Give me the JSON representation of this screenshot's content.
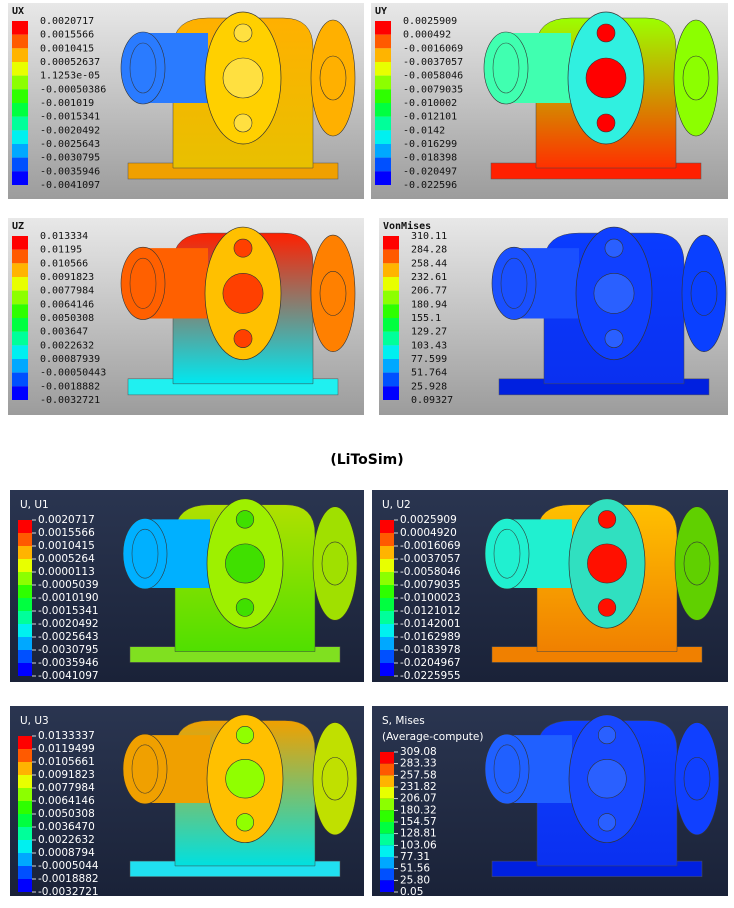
{
  "panels": [
    {
      "title": "UX",
      "labels": [
        "0.0020717",
        "0.0015566",
        "0.0010415",
        "0.00052637",
        "1.1253e-05",
        "-0.00050386",
        "-0.001019",
        "-0.0015341",
        "-0.0020492",
        "-0.0025643",
        "-0.0030795",
        "-0.0035946",
        "-0.0041097"
      ]
    },
    {
      "title": "UY",
      "labels": [
        "0.0025909",
        "0.000492",
        "-0.0016069",
        "-0.0037057",
        "-0.0058046",
        "-0.0079035",
        "-0.010002",
        "-0.012101",
        "-0.0142",
        "-0.016299",
        "-0.018398",
        "-0.020497",
        "-0.022596"
      ]
    },
    {
      "title": "UZ",
      "labels": [
        "0.013334",
        "0.01195",
        "0.010566",
        "0.0091823",
        "0.0077984",
        "0.0064146",
        "0.0050308",
        "0.003647",
        "0.0022632",
        "0.00087939",
        "-0.00050443",
        "-0.0018882",
        "-0.0032721"
      ]
    },
    {
      "title": "VonMises",
      "labels": [
        "310.11",
        "284.28",
        "258.44",
        "232.61",
        "206.77",
        "180.94",
        "155.1",
        "129.27",
        "103.43",
        "77.599",
        "51.764",
        "25.928",
        "0.09327"
      ]
    },
    {
      "title": "U, U1",
      "labels": [
        "0.0020717",
        "0.0015566",
        "0.0010415",
        "0.0005264",
        "0.0000113",
        "-0.0005039",
        "-0.0010190",
        "-0.0015341",
        "-0.0020492",
        "-0.0025643",
        "-0.0030795",
        "-0.0035946",
        "-0.0041097"
      ]
    },
    {
      "title": "U, U2",
      "labels": [
        "0.0025909",
        "0.0004920",
        "-0.0016069",
        "-0.0037057",
        "-0.0058046",
        "-0.0079035",
        "-0.0100023",
        "-0.0121012",
        "-0.0142001",
        "-0.0162989",
        "-0.0183978",
        "-0.0204967",
        "-0.0225955"
      ]
    },
    {
      "title": "U, U3",
      "labels": [
        "0.0133337",
        "0.0119499",
        "0.0105661",
        "0.0091823",
        "0.0077984",
        "0.0064146",
        "0.0050308",
        "0.0036470",
        "0.0022632",
        "0.0008794",
        "-0.0005044",
        "-0.0018882",
        "-0.0032721"
      ]
    },
    {
      "title": "S, Mises",
      "subtitle": "(Average-compute)",
      "labels": [
        "309.08",
        "283.33",
        "257.58",
        "231.82",
        "206.07",
        "180.32",
        "154.57",
        "128.81",
        "103.06",
        "77.31",
        "51.56",
        "25.80",
        "0.05"
      ]
    }
  ],
  "caption": "(LiToSim)"
}
